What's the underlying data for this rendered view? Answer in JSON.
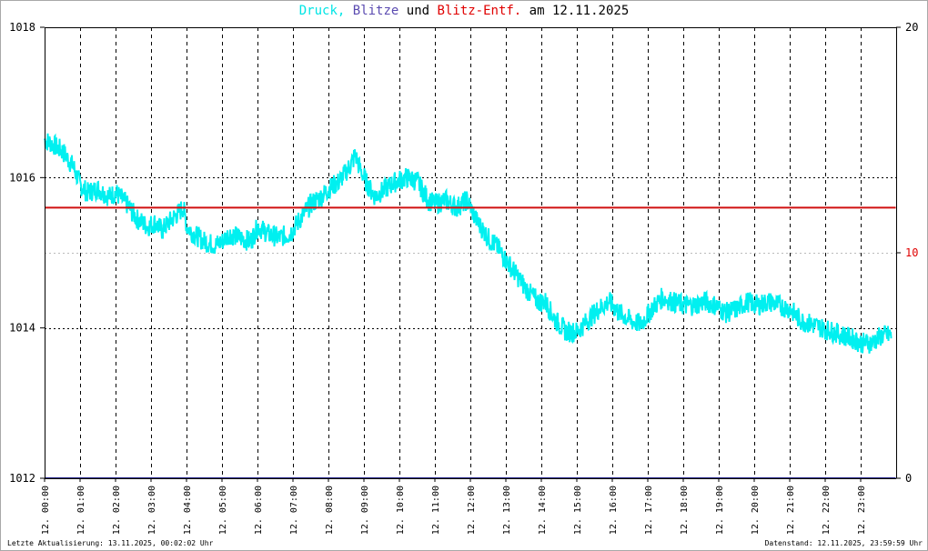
{
  "title": {
    "part1": "Druck,",
    "part2": "Blitze",
    "part3": "und",
    "part4": "Blitz-Entf.",
    "part5": "am 12.11.2025",
    "color1": "#00e5e5",
    "color2": "#5a4ab0",
    "color3": "#000000",
    "color4": "#e00000",
    "color5": "#000000"
  },
  "footer": {
    "left": "Letzte Aktualisierung: 13.11.2025, 00:02:02 Uhr",
    "right": "Datenstand: 12.11.2025, 23:59:59 Uhr"
  },
  "chart_data": {
    "type": "line",
    "title": "Druck, Blitze und Blitz-Entf. am 12.11.2025",
    "x_tick_labels": [
      "12. 00:00",
      "12. 01:00",
      "12. 02:00",
      "12. 03:00",
      "12. 04:00",
      "12. 05:00",
      "12. 06:00",
      "12. 07:00",
      "12. 08:00",
      "12. 09:00",
      "12. 10:00",
      "12. 11:00",
      "12. 12:00",
      "12. 13:00",
      "12. 14:00",
      "12. 15:00",
      "12. 16:00",
      "12. 17:00",
      "12. 18:00",
      "12. 19:00",
      "12. 20:00",
      "12. 21:00",
      "12. 22:00",
      "12. 23:00"
    ],
    "xlim_hours": [
      0,
      24
    ],
    "y_left": {
      "range": [
        1012,
        1018
      ],
      "ticks": [
        "1012",
        "1014",
        "1016",
        "1018"
      ]
    },
    "y_right": {
      "range": [
        0,
        20
      ],
      "ticks": [
        "0",
        "10",
        "20"
      ],
      "tick_colors": [
        "#000000",
        "#e00000",
        "#000000"
      ]
    },
    "grid": true,
    "series": [
      {
        "name": "Druck",
        "axis": "left",
        "color": "#00f0f0",
        "noise": 0.14,
        "x": [
          0,
          0.2,
          0.5,
          0.8,
          1.0,
          1.2,
          1.5,
          1.8,
          2.0,
          2.3,
          2.6,
          2.9,
          3.1,
          3.3,
          3.6,
          3.9,
          4.0,
          4.2,
          4.5,
          4.8,
          5.0,
          5.2,
          5.5,
          5.8,
          6.0,
          6.3,
          6.6,
          6.9,
          7.2,
          7.5,
          7.8,
          8.0,
          8.3,
          8.6,
          8.75,
          8.9,
          9.1,
          9.3,
          9.6,
          9.9,
          10.2,
          10.5,
          10.8,
          11.0,
          11.3,
          11.6,
          11.9,
          12.2,
          12.5,
          12.8,
          13.0,
          13.3,
          13.6,
          13.9,
          14.1,
          14.4,
          14.7,
          15.0,
          15.3,
          15.6,
          15.9,
          16.2,
          16.5,
          16.8,
          17.1,
          17.4,
          17.7,
          18.0,
          18.3,
          18.6,
          18.9,
          19.2,
          19.5,
          19.8,
          20.1,
          20.4,
          20.7,
          21.0,
          21.3,
          21.6,
          21.9,
          22.2,
          22.5,
          22.8,
          23.0,
          23.3,
          23.6,
          23.85
        ],
        "y": [
          1016.5,
          1016.45,
          1016.35,
          1016.15,
          1015.9,
          1015.8,
          1015.85,
          1015.75,
          1015.8,
          1015.65,
          1015.45,
          1015.35,
          1015.4,
          1015.3,
          1015.45,
          1015.6,
          1015.35,
          1015.25,
          1015.15,
          1015.1,
          1015.15,
          1015.25,
          1015.2,
          1015.15,
          1015.35,
          1015.25,
          1015.2,
          1015.25,
          1015.45,
          1015.65,
          1015.75,
          1015.85,
          1015.95,
          1016.15,
          1016.3,
          1016.1,
          1015.9,
          1015.75,
          1015.85,
          1015.95,
          1016.0,
          1015.95,
          1015.7,
          1015.65,
          1015.7,
          1015.6,
          1015.7,
          1015.4,
          1015.2,
          1015.05,
          1014.9,
          1014.7,
          1014.5,
          1014.35,
          1014.35,
          1014.1,
          1013.95,
          1013.95,
          1014.1,
          1014.25,
          1014.35,
          1014.2,
          1014.1,
          1014.05,
          1014.25,
          1014.4,
          1014.35,
          1014.3,
          1014.3,
          1014.35,
          1014.3,
          1014.2,
          1014.25,
          1014.35,
          1014.3,
          1014.35,
          1014.3,
          1014.25,
          1014.1,
          1014.05,
          1014.0,
          1013.95,
          1013.9,
          1013.85,
          1013.8,
          1013.8,
          1013.9,
          1013.9
        ]
      },
      {
        "name": "Blitze",
        "axis": "right",
        "color": "#202088",
        "x": [
          0,
          23.99
        ],
        "y": [
          0,
          0
        ]
      },
      {
        "name": "Blitz-Entf.",
        "axis": "right",
        "color": "#d01010",
        "x": [
          0,
          23.99
        ],
        "y": [
          12,
          12
        ]
      }
    ]
  }
}
